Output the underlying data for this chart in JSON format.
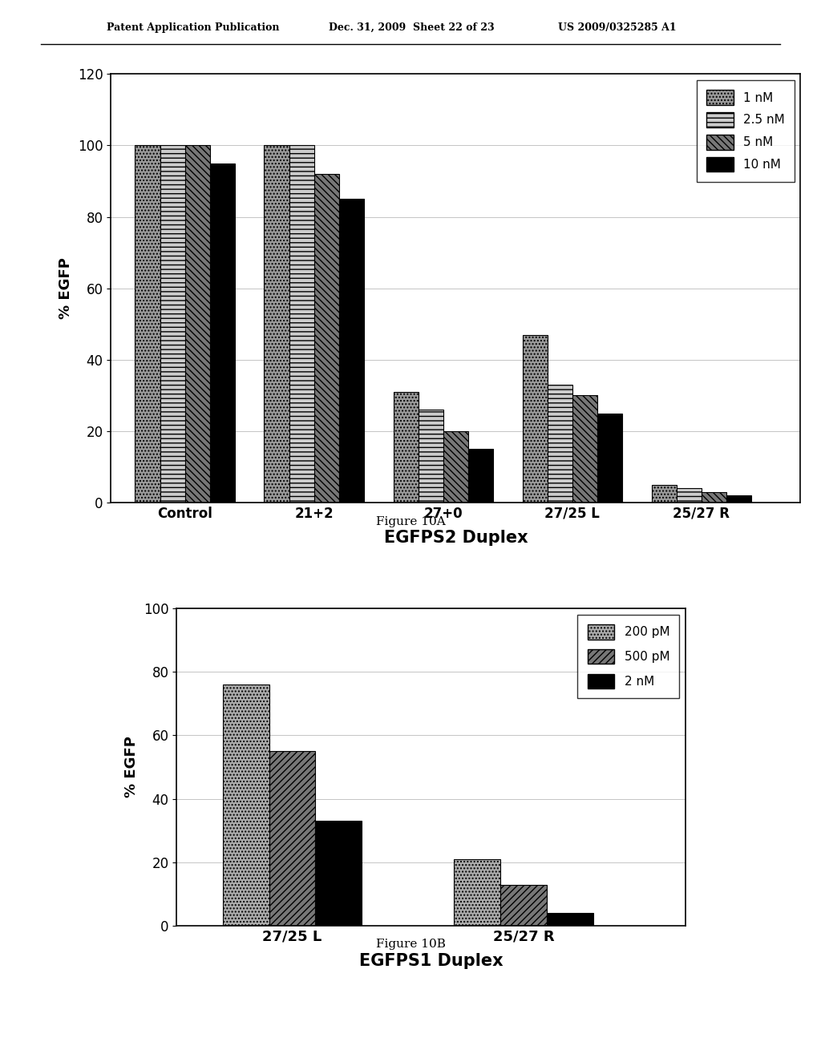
{
  "chart_a": {
    "title": "EGFPS2 Duplex",
    "ylabel": "% EGFP",
    "categories": [
      "Control",
      "21+2",
      "27+0",
      "27/25 L",
      "25/27 R"
    ],
    "series": [
      {
        "label": "1 nM",
        "values": [
          100,
          100,
          31,
          47,
          5
        ]
      },
      {
        "label": "2.5 nM",
        "values": [
          100,
          100,
          26,
          33,
          4
        ]
      },
      {
        "label": "5 nM",
        "values": [
          100,
          92,
          20,
          30,
          3
        ]
      },
      {
        "label": "10 nM",
        "values": [
          95,
          85,
          15,
          25,
          2
        ]
      }
    ],
    "ylim": [
      0,
      120
    ],
    "yticks": [
      0,
      20,
      40,
      60,
      80,
      100,
      120
    ],
    "figure_label": "Figure 10A"
  },
  "chart_b": {
    "title": "EGFPS1 Duplex",
    "ylabel": "% EGFP",
    "categories": [
      "27/25 L",
      "25/27 R"
    ],
    "series": [
      {
        "label": "200 pM",
        "values": [
          76,
          21
        ]
      },
      {
        "label": "500 pM",
        "values": [
          55,
          13
        ]
      },
      {
        "label": "2 nM",
        "values": [
          33,
          4
        ]
      }
    ],
    "ylim": [
      0,
      100
    ],
    "yticks": [
      0,
      20,
      40,
      60,
      80,
      100
    ],
    "figure_label": "Figure 10B"
  },
  "header_line1": "Patent Application Publication",
  "header_line2": "Dec. 31, 2009  Sheet 22 of 23",
  "header_line3": "US 2009/0325285 A1",
  "background_color": "#ffffff",
  "bar_edge_color": "#000000",
  "grid_color": "#bbbbbb",
  "hatches_a": [
    "....",
    "---",
    "\\\\\\\\",
    ""
  ],
  "hatches_b": [
    "....",
    "////",
    ""
  ],
  "colors_a": [
    "#999999",
    "#cccccc",
    "#777777",
    "#000000"
  ],
  "colors_b": [
    "#aaaaaa",
    "#777777",
    "#000000"
  ]
}
